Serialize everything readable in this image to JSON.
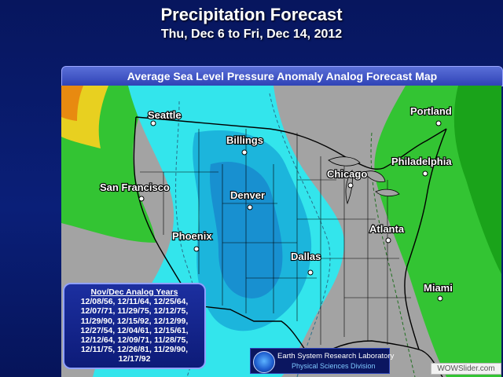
{
  "header": {
    "title": "Precipitation Forecast",
    "subtitle": "Thu, Dec 6 to Fri, Dec 14, 2012"
  },
  "map": {
    "heading": "Average Sea Level Pressure Anomaly Analog Forecast Map",
    "cities": [
      {
        "name": "Seattle"
      },
      {
        "name": "Billings"
      },
      {
        "name": "Portland"
      },
      {
        "name": "San Francisco"
      },
      {
        "name": "Denver"
      },
      {
        "name": "Chicago"
      },
      {
        "name": "Philadelphia"
      },
      {
        "name": "Phoenix"
      },
      {
        "name": "Atlanta"
      },
      {
        "name": "Dallas"
      },
      {
        "name": "Miami"
      }
    ],
    "colors": {
      "land": "#a3a3a3",
      "low_anomaly_light": "#33e5ec",
      "low_anomaly_mid": "#1cb5dc",
      "low_anomaly_dark": "#1890d0",
      "high_anomaly_green": "#33c433",
      "high_anomaly_dark_green": "#1aa31a",
      "high_anomaly_yellow": "#e8d020",
      "high_anomaly_orange": "#e88a10"
    }
  },
  "analog_years": {
    "title": "Nov/Dec Analog Years",
    "lines": [
      "12/08/56, 12/11/64, 12/25/64,",
      "12/07/71, 11/29/75, 12/12/75,",
      "11/29/90, 12/15/92, 12/12/99,",
      "12/27/54, 12/04/61, 12/15/61,",
      "12/12/64, 12/09/71, 11/28/75,",
      "12/11/75, 12/26/81, 11/29/90,",
      "12/17/92"
    ]
  },
  "credit": {
    "line1": "Earth System Research Laboratory",
    "line2": "Physical Sciences Division",
    "icon": "noaa-logo"
  },
  "watermark": "WOWSlider.com"
}
